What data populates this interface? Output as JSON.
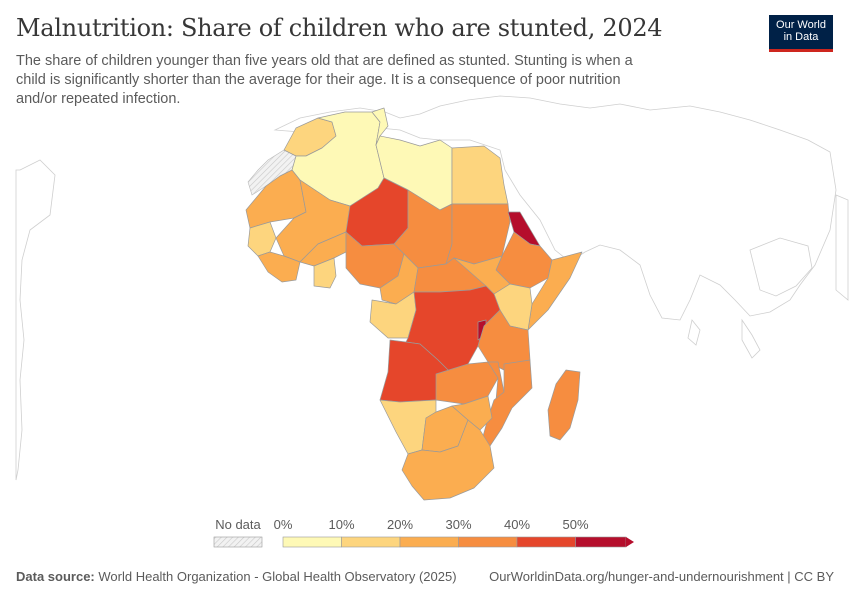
{
  "header": {
    "title": "Malnutrition: Share of children who are stunted, 2024",
    "subtitle": "The share of children younger than five years old that are defined as stunted. Stunting is when a child is significantly shorter than the average for their age. It is a consequence of poor nutrition and/or repeated infection."
  },
  "logo": {
    "line1": "Our World",
    "line2": "in Data"
  },
  "legend": {
    "no_data_label": "No data",
    "tick_labels": [
      "0%",
      "10%",
      "20%",
      "30%",
      "40%",
      "50%"
    ],
    "bins": [
      0,
      10,
      20,
      30,
      40,
      50,
      60
    ],
    "colors": [
      "#fef9b6",
      "#fdd57e",
      "#fbad50",
      "#f68d40",
      "#e5462b",
      "#b50e2c"
    ],
    "no_data_color": "#eeeeee"
  },
  "map": {
    "region": "Africa",
    "countries": [
      {
        "name": "Morocco",
        "value": 13
      },
      {
        "name": "Algeria",
        "value": 9
      },
      {
        "name": "Tunisia",
        "value": 8
      },
      {
        "name": "Libya",
        "value": 5
      },
      {
        "name": "Egypt",
        "value": 18
      },
      {
        "name": "Mauritania",
        "value": 25
      },
      {
        "name": "Mali",
        "value": 25
      },
      {
        "name": "Niger",
        "value": 44
      },
      {
        "name": "Chad",
        "value": 32
      },
      {
        "name": "Sudan",
        "value": 35
      },
      {
        "name": "Eritrea",
        "value": 50
      },
      {
        "name": "Ethiopia",
        "value": 35
      },
      {
        "name": "Somalia",
        "value": 25
      },
      {
        "name": "Senegal",
        "value": 17
      },
      {
        "name": "Guinea",
        "value": 28
      },
      {
        "name": "Burkina Faso",
        "value": 22
      },
      {
        "name": "Ghana",
        "value": 14
      },
      {
        "name": "Nigeria",
        "value": 37
      },
      {
        "name": "Cameroon",
        "value": 28
      },
      {
        "name": "Central African Republic",
        "value": 38
      },
      {
        "name": "South Sudan",
        "value": 28
      },
      {
        "name": "Kenya",
        "value": 17
      },
      {
        "name": "Gabon",
        "value": 15
      },
      {
        "name": "Democratic Republic of Congo",
        "value": 42
      },
      {
        "name": "Burundi",
        "value": 55
      },
      {
        "name": "Tanzania",
        "value": 30
      },
      {
        "name": "Angola",
        "value": 43
      },
      {
        "name": "Zambia",
        "value": 32
      },
      {
        "name": "Malawi",
        "value": 35
      },
      {
        "name": "Mozambique",
        "value": 36
      },
      {
        "name": "Madagascar",
        "value": 38
      },
      {
        "name": "Namibia",
        "value": 17
      },
      {
        "name": "Botswana",
        "value": 22
      },
      {
        "name": "Zimbabwe",
        "value": 23
      },
      {
        "name": "South Africa",
        "value": 26
      }
    ]
  },
  "footer": {
    "source_label": "Data source:",
    "source_text": "World Health Organization - Global Health Observatory (2025)",
    "url": "OurWorldinData.org/hunger-and-undernourishment | CC BY"
  }
}
